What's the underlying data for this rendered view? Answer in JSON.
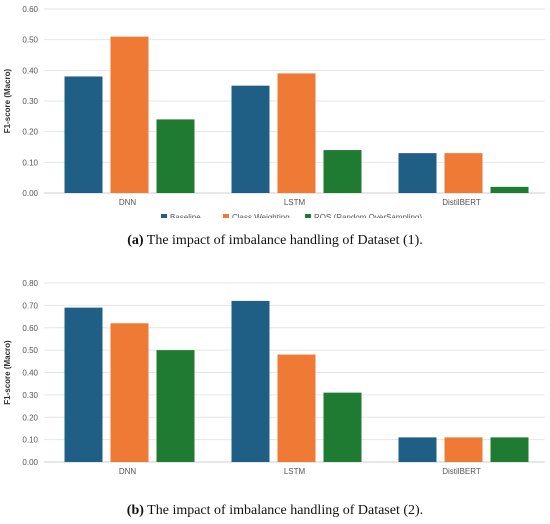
{
  "chart_data": [
    {
      "type": "bar",
      "ylabel": "F1-score (Macro)",
      "ylim": [
        0,
        0.6
      ],
      "yticks": [
        "0.00",
        "0.10",
        "0.20",
        "0.30",
        "0.40",
        "0.50",
        "0.60"
      ],
      "categories": [
        "DNN",
        "LSTM",
        "DistilBERT"
      ],
      "series": [
        {
          "name": "Baseline",
          "color": "#1f5f86",
          "values": [
            0.38,
            0.35,
            0.13
          ]
        },
        {
          "name": "Class Weighting",
          "color": "#ef7a35",
          "values": [
            0.51,
            0.39,
            0.13
          ]
        },
        {
          "name": "ROS (Random OverSampling)",
          "color": "#1e7b31",
          "values": [
            0.24,
            0.14,
            0.02
          ]
        }
      ],
      "grid": true,
      "legend": "bottom"
    },
    {
      "type": "bar",
      "ylabel": "F1-score (Macro)",
      "ylim": [
        0,
        0.8
      ],
      "yticks": [
        "0.00",
        "0.10",
        "0.20",
        "0.30",
        "0.40",
        "0.50",
        "0.60",
        "0.70",
        "0.80"
      ],
      "categories": [
        "DNN",
        "LSTM",
        "DistilBERT"
      ],
      "series": [
        {
          "name": "Baseline",
          "color": "#1f5f86",
          "values": [
            0.69,
            0.72,
            0.11
          ]
        },
        {
          "name": "Class Weighting",
          "color": "#ef7a35",
          "values": [
            0.62,
            0.48,
            0.11
          ]
        },
        {
          "name": "ROS (Random OverSampling)",
          "color": "#1e7b31",
          "values": [
            0.5,
            0.31,
            0.11
          ]
        }
      ],
      "grid": true,
      "legend": "bottom"
    }
  ],
  "captions": [
    {
      "label": "(a)",
      "text": "The impact of imbalance handling of Dataset (1)."
    },
    {
      "label": "(b)",
      "text": "The impact of imbalance handling of Dataset (2)."
    }
  ]
}
